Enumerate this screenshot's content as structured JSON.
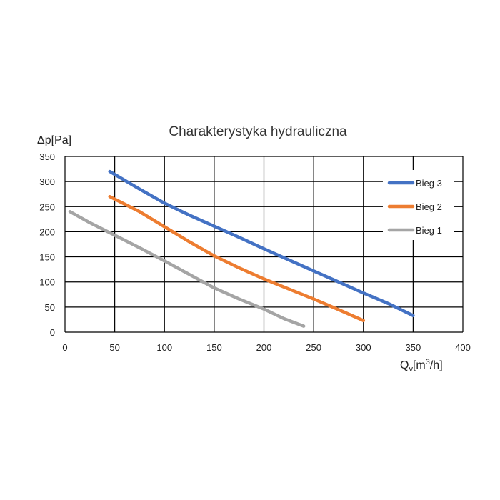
{
  "chart_data": {
    "type": "line",
    "title": "Charakterystyka hydrauliczna",
    "ylabel_symbol": "Δ",
    "ylabel_rest": "p[Pa]",
    "xlabel_main": "Q",
    "xlabel_sub": "v",
    "xlabel_mid": "[m",
    "xlabel_sup": "3",
    "xlabel_end": "/h]",
    "xlim": [
      0,
      400
    ],
    "ylim": [
      0,
      350
    ],
    "x_ticks": [
      "0",
      "50",
      "100",
      "150",
      "200",
      "250",
      "300",
      "350",
      "400"
    ],
    "y_ticks": [
      "0",
      "50",
      "100",
      "150",
      "200",
      "250",
      "300",
      "350"
    ],
    "grid": true,
    "legend_position": "right",
    "series": [
      {
        "name": "Bieg 3",
        "color": "#4472C4",
        "points": [
          [
            45,
            320
          ],
          [
            75,
            285
          ],
          [
            100,
            257
          ],
          [
            125,
            233
          ],
          [
            150,
            211
          ],
          [
            175,
            189
          ],
          [
            200,
            166
          ],
          [
            225,
            144
          ],
          [
            250,
            122
          ],
          [
            275,
            100
          ],
          [
            300,
            78
          ],
          [
            325,
            57
          ],
          [
            350,
            33
          ]
        ]
      },
      {
        "name": "Bieg 2",
        "color": "#ED7D31",
        "points": [
          [
            45,
            270
          ],
          [
            75,
            240
          ],
          [
            100,
            210
          ],
          [
            125,
            180
          ],
          [
            150,
            152
          ],
          [
            175,
            128
          ],
          [
            200,
            106
          ],
          [
            225,
            86
          ],
          [
            250,
            66
          ],
          [
            275,
            45
          ],
          [
            300,
            23
          ]
        ]
      },
      {
        "name": "Bieg 1",
        "color": "#A5A5A5",
        "points": [
          [
            5,
            240
          ],
          [
            25,
            218
          ],
          [
            50,
            193
          ],
          [
            75,
            168
          ],
          [
            100,
            142
          ],
          [
            125,
            115
          ],
          [
            150,
            88
          ],
          [
            175,
            66
          ],
          [
            200,
            46
          ],
          [
            220,
            27
          ],
          [
            240,
            12
          ]
        ]
      }
    ]
  }
}
